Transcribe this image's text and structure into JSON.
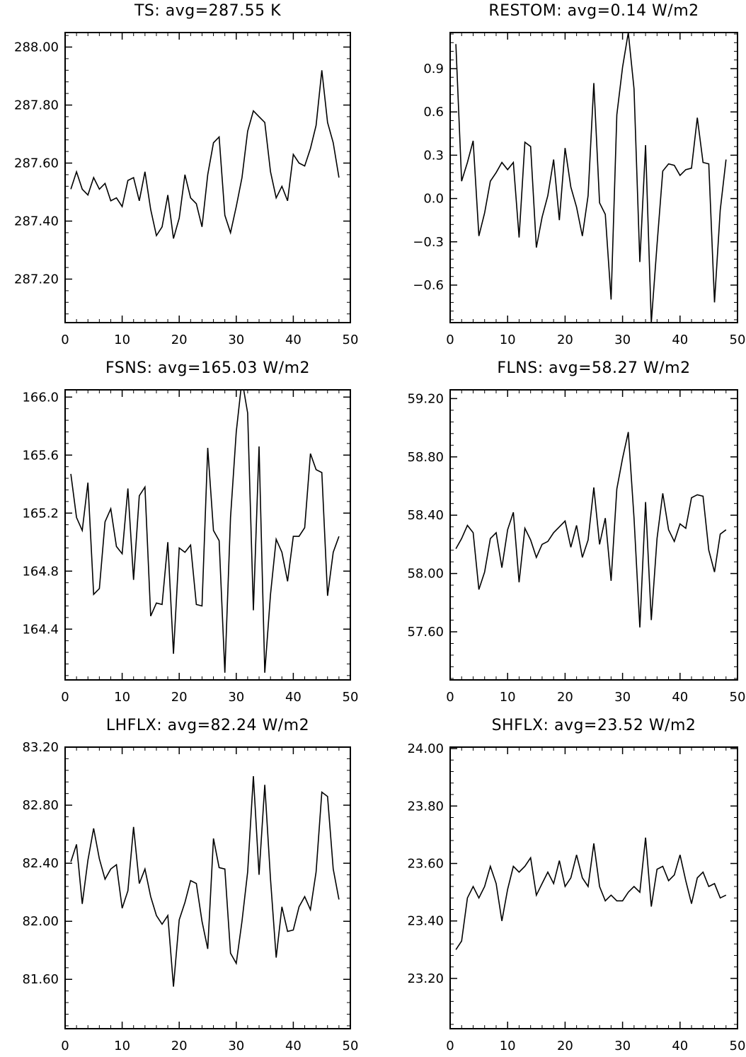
{
  "chart_data": [
    {
      "type": "line",
      "title": "TS: avg=287.55 K",
      "xlabel": "",
      "ylabel": "",
      "xlim": [
        0,
        50
      ],
      "ylim": [
        287.05,
        288.05
      ],
      "xticks": [
        0,
        10,
        20,
        30,
        40,
        50
      ],
      "xtick_labels": [
        "0",
        "10",
        "20",
        "30",
        "40",
        "50"
      ],
      "yticks": [
        287.2,
        287.4,
        287.6,
        287.8,
        288.0
      ],
      "ytick_labels": [
        "287.20",
        "287.40",
        "287.60",
        "287.80",
        "288.00"
      ],
      "grid": false,
      "series": [
        {
          "x": [
            1,
            2,
            3,
            4,
            5,
            6,
            7,
            8,
            9,
            10,
            11,
            12,
            13,
            14,
            15,
            16,
            17,
            18,
            19,
            20,
            21,
            22,
            23,
            24,
            25,
            26,
            27,
            28,
            29,
            30,
            31,
            32,
            33,
            34,
            35,
            36,
            37,
            38,
            39,
            40,
            41,
            42,
            43,
            44,
            45,
            46,
            47,
            48
          ],
          "values": [
            287.51,
            287.57,
            287.51,
            287.49,
            287.55,
            287.51,
            287.53,
            287.47,
            287.48,
            287.45,
            287.54,
            287.55,
            287.47,
            287.57,
            287.44,
            287.35,
            287.38,
            287.49,
            287.34,
            287.41,
            287.56,
            287.48,
            287.46,
            287.38,
            287.56,
            287.67,
            287.69,
            287.42,
            287.36,
            287.45,
            287.55,
            287.71,
            287.78,
            287.76,
            287.74,
            287.57,
            287.48,
            287.52,
            287.47,
            287.63,
            287.6,
            287.59,
            287.65,
            287.73,
            287.92,
            287.74,
            287.67,
            287.55
          ]
        }
      ]
    },
    {
      "type": "line",
      "title": "RESTOM: avg=0.14 W/m2",
      "xlabel": "",
      "ylabel": "",
      "xlim": [
        0,
        50
      ],
      "ylim": [
        -0.86,
        1.15
      ],
      "xticks": [
        0,
        10,
        20,
        30,
        40,
        50
      ],
      "xtick_labels": [
        "0",
        "10",
        "20",
        "30",
        "40",
        "50"
      ],
      "yticks": [
        -0.6,
        -0.3,
        0.0,
        0.3,
        0.6,
        0.9
      ],
      "ytick_labels": [
        "−0.6",
        "−0.3",
        "0.0",
        "0.3",
        "0.6",
        "0.9"
      ],
      "grid": false,
      "series": [
        {
          "x": [
            1,
            2,
            3,
            4,
            5,
            6,
            7,
            8,
            9,
            10,
            11,
            12,
            13,
            14,
            15,
            16,
            17,
            18,
            19,
            20,
            21,
            22,
            23,
            24,
            25,
            26,
            27,
            28,
            29,
            30,
            31,
            32,
            33,
            34,
            35,
            36,
            37,
            38,
            39,
            40,
            41,
            42,
            43,
            44,
            45,
            46,
            47,
            48
          ],
          "values": [
            1.07,
            0.12,
            0.25,
            0.4,
            -0.26,
            -0.1,
            0.12,
            0.18,
            0.25,
            0.2,
            0.25,
            -0.27,
            0.39,
            0.36,
            -0.34,
            -0.13,
            0.02,
            0.27,
            -0.15,
            0.35,
            0.08,
            -0.06,
            -0.26,
            0.02,
            0.8,
            -0.03,
            -0.11,
            -0.7,
            0.58,
            0.91,
            1.15,
            0.76,
            -0.44,
            0.37,
            -0.86,
            -0.32,
            0.19,
            0.24,
            0.23,
            0.16,
            0.2,
            0.21,
            0.56,
            0.25,
            0.24,
            -0.72,
            -0.08,
            0.27
          ]
        }
      ]
    },
    {
      "type": "line",
      "title": "FSNS: avg=165.03 W/m2",
      "xlabel": "",
      "ylabel": "",
      "xlim": [
        0,
        50
      ],
      "ylim": [
        164.05,
        166.05
      ],
      "xticks": [
        0,
        10,
        20,
        30,
        40,
        50
      ],
      "xtick_labels": [
        "0",
        "10",
        "20",
        "30",
        "40",
        "50"
      ],
      "yticks": [
        164.4,
        164.8,
        165.2,
        165.6,
        166.0
      ],
      "ytick_labels": [
        "164.4",
        "164.8",
        "165.2",
        "165.6",
        "166.0"
      ],
      "grid": false,
      "series": [
        {
          "x": [
            1,
            2,
            3,
            4,
            5,
            6,
            7,
            8,
            9,
            10,
            11,
            12,
            13,
            14,
            15,
            16,
            17,
            18,
            19,
            20,
            21,
            22,
            23,
            24,
            25,
            26,
            27,
            28,
            29,
            30,
            31,
            32,
            33,
            34,
            35,
            36,
            37,
            38,
            39,
            40,
            41,
            42,
            43,
            44,
            45,
            46,
            47,
            48
          ],
          "values": [
            165.47,
            165.17,
            165.08,
            165.41,
            164.64,
            164.68,
            165.14,
            165.23,
            164.97,
            164.92,
            165.37,
            164.74,
            165.32,
            165.38,
            164.49,
            164.58,
            164.57,
            165.0,
            164.23,
            164.96,
            164.93,
            164.98,
            164.57,
            164.56,
            165.65,
            165.08,
            165.01,
            164.1,
            165.17,
            165.76,
            166.12,
            165.89,
            164.53,
            165.66,
            164.1,
            164.64,
            165.02,
            164.93,
            164.73,
            165.04,
            165.04,
            165.1,
            165.61,
            165.5,
            165.48,
            164.63,
            164.93,
            165.04
          ]
        }
      ]
    },
    {
      "type": "line",
      "title": "FLNS: avg=58.27 W/m2",
      "xlabel": "",
      "ylabel": "",
      "xlim": [
        0,
        50
      ],
      "ylim": [
        57.27,
        59.26
      ],
      "xticks": [
        0,
        10,
        20,
        30,
        40,
        50
      ],
      "xtick_labels": [
        "0",
        "10",
        "20",
        "30",
        "40",
        "50"
      ],
      "yticks": [
        57.6,
        58.0,
        58.4,
        58.8,
        59.2
      ],
      "ytick_labels": [
        "57.60",
        "58.00",
        "58.40",
        "58.80",
        "59.20"
      ],
      "grid": false,
      "series": [
        {
          "x": [
            1,
            2,
            3,
            4,
            5,
            6,
            7,
            8,
            9,
            10,
            11,
            12,
            13,
            14,
            15,
            16,
            17,
            18,
            19,
            20,
            21,
            22,
            23,
            24,
            25,
            26,
            27,
            28,
            29,
            30,
            31,
            32,
            33,
            34,
            35,
            36,
            37,
            38,
            39,
            40,
            41,
            42,
            43,
            44,
            45,
            46,
            47,
            48
          ],
          "values": [
            58.17,
            58.24,
            58.33,
            58.28,
            57.89,
            58.01,
            58.24,
            58.28,
            58.04,
            58.3,
            58.42,
            57.94,
            58.31,
            58.23,
            58.11,
            58.2,
            58.22,
            58.28,
            58.32,
            58.36,
            58.18,
            58.33,
            58.11,
            58.23,
            58.59,
            58.2,
            58.38,
            57.95,
            58.58,
            58.79,
            58.97,
            58.38,
            57.63,
            58.49,
            57.68,
            58.24,
            58.55,
            58.3,
            58.22,
            58.34,
            58.31,
            58.52,
            58.54,
            58.53,
            58.16,
            58.01,
            58.27,
            58.3
          ]
        }
      ]
    },
    {
      "type": "line",
      "title": "LHFLX: avg=82.24 W/m2",
      "xlabel": "",
      "ylabel": "",
      "xlim": [
        0,
        50
      ],
      "ylim": [
        81.26,
        83.2
      ],
      "xticks": [
        0,
        10,
        20,
        30,
        40,
        50
      ],
      "xtick_labels": [
        "0",
        "10",
        "20",
        "30",
        "40",
        "50"
      ],
      "yticks": [
        81.6,
        82.0,
        82.4,
        82.8,
        83.2
      ],
      "ytick_labels": [
        "81.60",
        "82.00",
        "82.40",
        "82.80",
        "83.20"
      ],
      "grid": false,
      "series": [
        {
          "x": [
            1,
            2,
            3,
            4,
            5,
            6,
            7,
            8,
            9,
            10,
            11,
            12,
            13,
            14,
            15,
            16,
            17,
            18,
            19,
            20,
            21,
            22,
            23,
            24,
            25,
            26,
            27,
            28,
            29,
            30,
            31,
            32,
            33,
            34,
            35,
            36,
            37,
            38,
            39,
            40,
            41,
            42,
            43,
            44,
            45,
            46,
            47,
            48
          ],
          "values": [
            82.41,
            82.53,
            82.12,
            82.42,
            82.64,
            82.43,
            82.29,
            82.36,
            82.39,
            82.09,
            82.21,
            82.65,
            82.26,
            82.36,
            82.17,
            82.04,
            81.98,
            82.04,
            81.55,
            82.01,
            82.13,
            82.28,
            82.26,
            82.0,
            81.81,
            82.57,
            82.37,
            82.36,
            81.78,
            81.71,
            82.0,
            82.34,
            83.0,
            82.32,
            82.94,
            82.29,
            81.75,
            82.1,
            81.93,
            81.94,
            82.1,
            82.17,
            82.08,
            82.34,
            82.89,
            82.86,
            82.36,
            82.15
          ]
        }
      ]
    },
    {
      "type": "line",
      "title": "SHFLX: avg=23.52 W/m2",
      "xlabel": "",
      "ylabel": "",
      "xlim": [
        0,
        50
      ],
      "ylim": [
        23.025,
        24.005
      ],
      "xticks": [
        0,
        10,
        20,
        30,
        40,
        50
      ],
      "xtick_labels": [
        "0",
        "10",
        "20",
        "30",
        "40",
        "50"
      ],
      "yticks": [
        23.2,
        23.4,
        23.6,
        23.8,
        24.0
      ],
      "ytick_labels": [
        "23.20",
        "23.40",
        "23.60",
        "23.80",
        "24.00"
      ],
      "grid": false,
      "series": [
        {
          "x": [
            1,
            2,
            3,
            4,
            5,
            6,
            7,
            8,
            9,
            10,
            11,
            12,
            13,
            14,
            15,
            16,
            17,
            18,
            19,
            20,
            21,
            22,
            23,
            24,
            25,
            26,
            27,
            28,
            29,
            30,
            31,
            32,
            33,
            34,
            35,
            36,
            37,
            38,
            39,
            40,
            41,
            42,
            43,
            44,
            45,
            46,
            47,
            48
          ],
          "values": [
            23.3,
            23.33,
            23.48,
            23.52,
            23.48,
            23.52,
            23.59,
            23.53,
            23.4,
            23.51,
            23.59,
            23.57,
            23.59,
            23.62,
            23.49,
            23.53,
            23.57,
            23.53,
            23.61,
            23.52,
            23.55,
            23.63,
            23.55,
            23.52,
            23.67,
            23.52,
            23.47,
            23.49,
            23.47,
            23.47,
            23.5,
            23.52,
            23.5,
            23.69,
            23.45,
            23.58,
            23.59,
            23.54,
            23.56,
            23.63,
            23.54,
            23.46,
            23.55,
            23.57,
            23.52,
            23.53,
            23.48,
            23.49
          ]
        }
      ]
    }
  ]
}
